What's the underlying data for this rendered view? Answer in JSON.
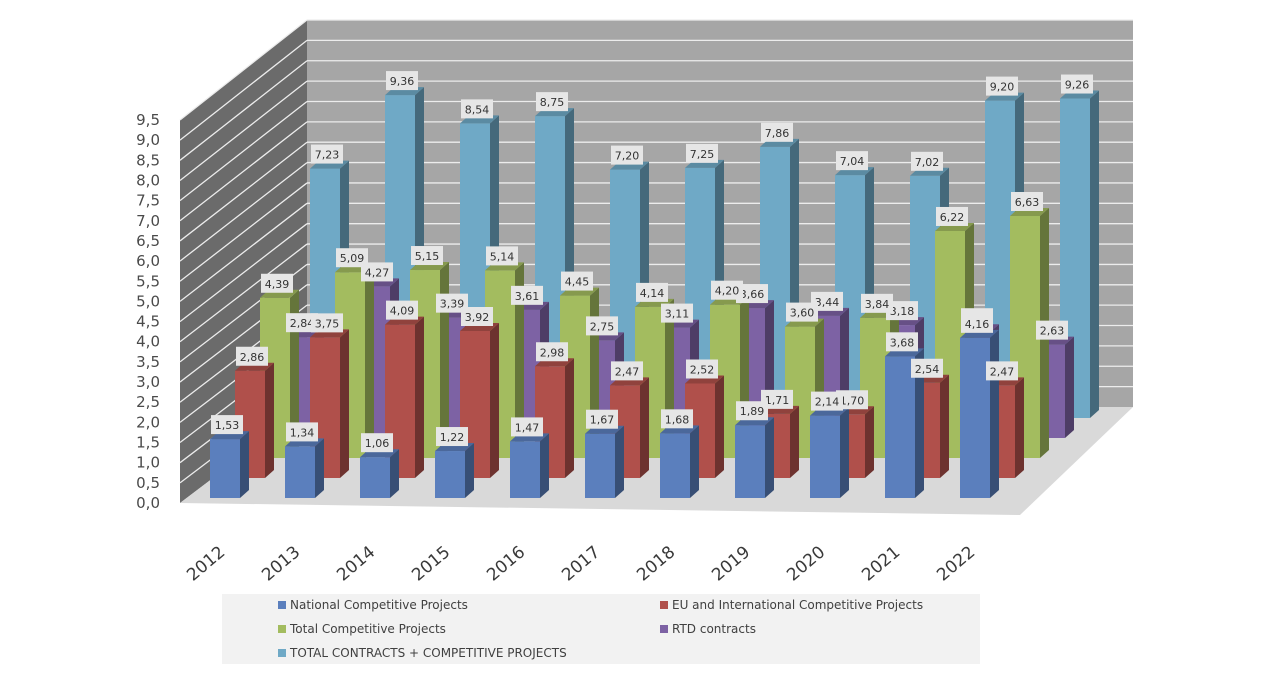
{
  "chart_data": {
    "type": "bar",
    "subtype": "3d-clustered-column",
    "title": "",
    "xlabel": "",
    "ylabel": "",
    "categories": [
      "2012",
      "2013",
      "2014",
      "2015",
      "2016",
      "2017",
      "2018",
      "2019",
      "2020",
      "2021",
      "2022"
    ],
    "ylim": [
      0,
      9.5
    ],
    "yticks": [
      "0,0",
      "0,5",
      "1,0",
      "1,5",
      "2,0",
      "2,5",
      "3,0",
      "3,5",
      "4,0",
      "4,5",
      "5,0",
      "5,5",
      "6,0",
      "6,5",
      "7,0",
      "7,5",
      "8,0",
      "8,5",
      "9,0",
      "9,5"
    ],
    "grid": true,
    "legend_position": "bottom",
    "decimal_separator": ",",
    "series": [
      {
        "name": "National Competitive Projects",
        "color": "#5b7fbd",
        "values": [
          1.53,
          1.34,
          1.06,
          1.22,
          1.47,
          1.67,
          1.68,
          1.89,
          2.14,
          3.68,
          4.16
        ]
      },
      {
        "name": "EU and International Competitive Projects",
        "color": "#b0504b",
        "values": [
          2.86,
          3.75,
          4.09,
          3.92,
          2.98,
          2.47,
          2.52,
          1.71,
          1.7,
          2.54,
          2.47
        ]
      },
      {
        "name": "Total Competitive Projects",
        "color": "#a3bc5f",
        "values": [
          4.39,
          5.09,
          5.15,
          5.14,
          4.45,
          4.14,
          4.2,
          3.6,
          3.84,
          6.22,
          6.63
        ]
      },
      {
        "name": "RTD contracts",
        "color": "#7d62a4",
        "values": [
          2.84,
          4.27,
          3.39,
          3.61,
          2.75,
          3.11,
          3.66,
          3.44,
          3.18,
          2.98,
          2.63
        ]
      },
      {
        "name": "TOTAL CONTRACTS + COMPETITIVE PROJECTS",
        "color": "#6fa9c6",
        "values": [
          7.23,
          9.36,
          8.54,
          8.75,
          7.2,
          7.25,
          7.86,
          7.04,
          7.02,
          9.2,
          9.26
        ]
      }
    ]
  },
  "colors": {
    "back_wall": "#a6a6a6",
    "side_wall": "#6b6b6b",
    "floor": "#d9d9d9",
    "gridline": "#ececec",
    "label_box": "#e6e6e6"
  }
}
